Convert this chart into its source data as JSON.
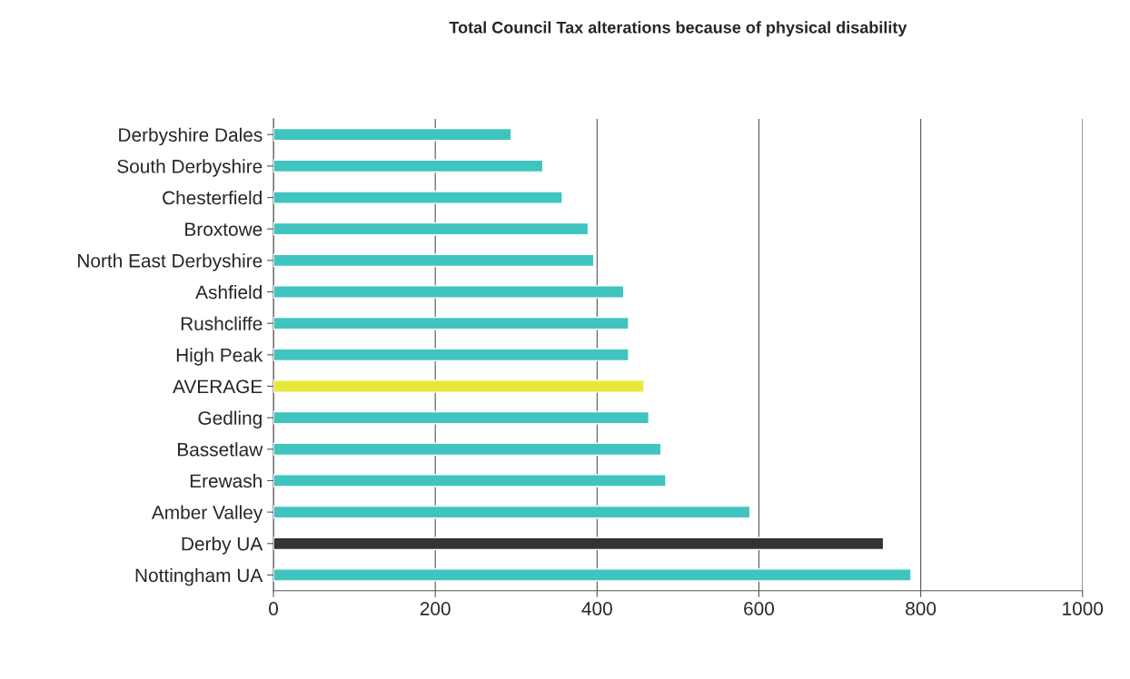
{
  "chart_data": {
    "type": "bar",
    "orientation": "horizontal",
    "title": "Total Council Tax alterations because of physical disability",
    "categories": [
      "Derbyshire Dales",
      "South Derbyshire",
      "Chesterfield",
      "Broxtowe",
      "North East Derbyshire",
      "Ashfield",
      "Rushcliffe",
      "High Peak",
      "AVERAGE",
      "Gedling",
      "Bassetlaw",
      "Erewash",
      "Amber Valley",
      "Derby UA",
      "Nottingham UA"
    ],
    "values": [
      294,
      333,
      357,
      389,
      396,
      433,
      439,
      439,
      458,
      464,
      479,
      485,
      589,
      754,
      788
    ],
    "colors": [
      "#40c4c0",
      "#40c4c0",
      "#40c4c0",
      "#40c4c0",
      "#40c4c0",
      "#40c4c0",
      "#40c4c0",
      "#40c4c0",
      "#e8e83a",
      "#40c4c0",
      "#40c4c0",
      "#40c4c0",
      "#40c4c0",
      "#333333",
      "#40c4c0"
    ],
    "xlim": [
      0,
      1000
    ],
    "xticks": [
      0,
      200,
      400,
      600,
      800,
      1000
    ],
    "grid": "x"
  }
}
